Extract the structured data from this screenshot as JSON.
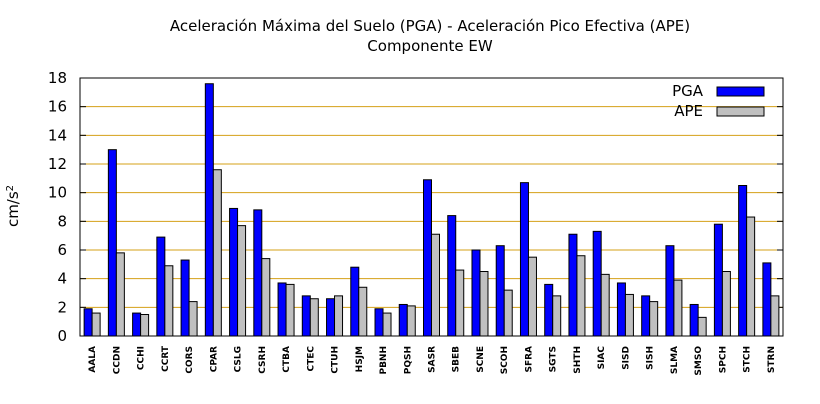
{
  "chart_data": {
    "type": "bar",
    "title": "Aceleración Máxima del Suelo (PGA) -  Aceleración Pico Efectiva (APE)",
    "subtitle": "Componente EW",
    "ylabel": "cm/s",
    "ylabel_superscript": "2",
    "xlabel": "",
    "ylim": [
      0,
      18
    ],
    "yticks": [
      0,
      2,
      4,
      6,
      8,
      10,
      12,
      14,
      16,
      18
    ],
    "grid": "horizontal",
    "legend_position": "top-right",
    "categories": [
      "AALA",
      "CCDN",
      "CCHI",
      "CCRT",
      "CORS",
      "CPAR",
      "CSLG",
      "CSRH",
      "CTBA",
      "CTEC",
      "CTUH",
      "HSJM",
      "PBNH",
      "PQSH",
      "SASR",
      "SBEB",
      "SCNE",
      "SCOH",
      "SFRA",
      "SGTS",
      "SHTH",
      "SIAC",
      "SISD",
      "SISH",
      "SLMA",
      "SMSO",
      "SPCH",
      "STCH",
      "STRN"
    ],
    "series": [
      {
        "name": "PGA",
        "color": "#0000ff",
        "values": [
          1.9,
          13.0,
          1.6,
          6.9,
          5.3,
          17.6,
          8.9,
          8.8,
          3.7,
          2.8,
          2.6,
          4.8,
          1.9,
          2.2,
          10.9,
          8.4,
          6.0,
          6.3,
          10.7,
          3.6,
          7.1,
          7.3,
          3.7,
          2.8,
          6.3,
          2.2,
          7.8,
          10.5,
          5.1
        ]
      },
      {
        "name": "APE",
        "color": "#c0c0c0",
        "values": [
          1.6,
          5.8,
          1.5,
          4.9,
          2.4,
          11.6,
          7.7,
          5.4,
          3.6,
          2.6,
          2.8,
          3.4,
          1.6,
          2.1,
          7.1,
          4.6,
          4.5,
          3.2,
          5.5,
          2.8,
          5.6,
          4.3,
          2.9,
          2.4,
          3.9,
          1.3,
          4.5,
          8.3,
          2.8
        ]
      }
    ]
  }
}
